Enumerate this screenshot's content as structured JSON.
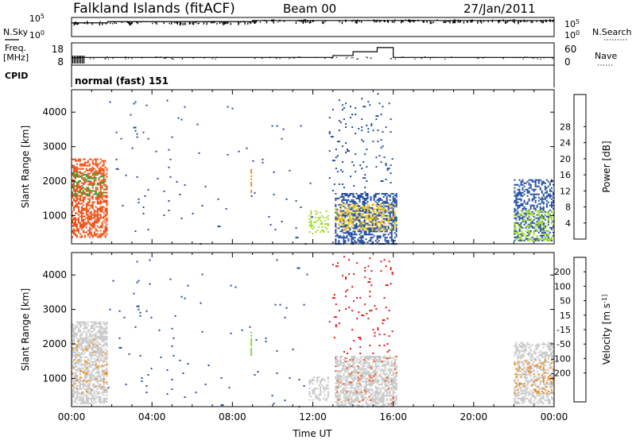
{
  "header": {
    "station": "Falkland Islands (fitACF)",
    "beam": "Beam 00",
    "date": "27/Jan/2011"
  },
  "left_labels": {
    "nsky": "N.Sky",
    "freq_line1": "Freq.",
    "freq_line2": "[MHz]",
    "cpid": "CPID"
  },
  "right_labels": {
    "nsearch": "N.Search",
    "nave": "Nave"
  },
  "cpid_text": "normal (fast) 151",
  "colors": {
    "power": [
      "#1414e6",
      "#1e4aa0",
      "#3c8c78",
      "#2ea02e",
      "#a0dc28",
      "#f0c81e",
      "#f08c14",
      "#f05014",
      "#e61414"
    ],
    "velocity": [
      "#1414e6",
      "#1e4aa0",
      "#3c8c78",
      "#8cd23c",
      "#c8c8c8",
      "#c8c8c8",
      "#f0c81e",
      "#f08c14",
      "#f05014",
      "#e61414"
    ]
  },
  "chart_data": [
    {
      "type": "line",
      "name": "noise-panel",
      "left_ticks": [
        "10^5",
        "10^0"
      ],
      "right_ticks": [
        "10^5",
        "10^0"
      ],
      "series": [
        {
          "name": "N.Sky",
          "x": [
            0.0,
            1.8,
            1.8,
            9.0,
            9.0,
            24.0
          ],
          "y": [
            4.2,
            4.2,
            4.6,
            4.6,
            5.0,
            5.0
          ]
        }
      ]
    },
    {
      "type": "line",
      "name": "freq-panel",
      "left_ticks": [
        "18",
        "8"
      ],
      "right_ticks": [
        "60",
        "0"
      ],
      "series": [
        {
          "name": "Freq",
          "x": [
            0,
            0.4,
            0.4,
            13.0,
            13.0,
            14.0,
            14.0,
            15.2,
            15.2,
            16.0,
            16.0,
            24.0
          ],
          "y": [
            11,
            11,
            11.2,
            11.2,
            12.2,
            12.2,
            14.2,
            14.2,
            16.4,
            16.4,
            11.2,
            11.2
          ]
        }
      ]
    },
    {
      "type": "heatmap",
      "name": "power-panel",
      "xlabel": "",
      "ylabel": "Slant Range [km]",
      "xlim": [
        0,
        24
      ],
      "ylim": [
        180,
        4650
      ],
      "y_ticks": [
        1000,
        2000,
        3000,
        4000
      ],
      "colorbar_label": "Power [dB]",
      "colorbar_ticks": [
        "4",
        "8",
        "12",
        "16",
        "20",
        "24",
        "28"
      ],
      "patches": [
        {
          "x0": 0.0,
          "x1": 1.8,
          "y0": 400,
          "y1": 2700,
          "color": "#f05014",
          "density": 0.55
        },
        {
          "x0": 0.0,
          "x1": 1.8,
          "y0": 1600,
          "y1": 2300,
          "color": "#2ea02e",
          "density": 0.25
        },
        {
          "x0": 8.9,
          "x1": 9.0,
          "y0": 1700,
          "y1": 2400,
          "color": "#f08c14",
          "density": 0.8
        },
        {
          "x0": 11.8,
          "x1": 12.8,
          "y0": 500,
          "y1": 1200,
          "color": "#a0dc28",
          "density": 0.35
        },
        {
          "x0": 13.1,
          "x1": 16.2,
          "y0": 200,
          "y1": 1700,
          "color": "#1e4aa0",
          "density": 0.5
        },
        {
          "x0": 13.1,
          "x1": 16.2,
          "y0": 600,
          "y1": 1400,
          "color": "#f0c81e",
          "density": 0.35
        },
        {
          "x0": 12.8,
          "x1": 16.0,
          "y0": 1700,
          "y1": 4600,
          "color": "#1e4aa0",
          "density": 0.04
        },
        {
          "x0": 22.0,
          "x1": 24.0,
          "y0": 300,
          "y1": 2100,
          "color": "#1e4aa0",
          "density": 0.45
        },
        {
          "x0": 22.0,
          "x1": 24.0,
          "y0": 300,
          "y1": 1200,
          "color": "#a0dc28",
          "density": 0.3
        },
        {
          "x0": 1.8,
          "x1": 12.0,
          "y0": 200,
          "y1": 4500,
          "color": "#1e4aa0",
          "density": 0.008
        }
      ]
    },
    {
      "type": "heatmap",
      "name": "velocity-panel",
      "xlabel": "Time UT",
      "ylabel": "Slant Range [km]",
      "xlim": [
        0,
        24
      ],
      "ylim": [
        180,
        4650
      ],
      "x_ticks": [
        "00:00",
        "04:00",
        "08:00",
        "12:00",
        "16:00",
        "20:00",
        "00:00"
      ],
      "y_ticks": [
        1000,
        2000,
        3000,
        4000
      ],
      "colorbar_label": "Velocity [m s^-1]",
      "colorbar_ticks": [
        "200",
        "100",
        "50",
        "15",
        "-15",
        "-50",
        "-100",
        "-200"
      ],
      "patches": [
        {
          "x0": 0.0,
          "x1": 1.8,
          "y0": 300,
          "y1": 2700,
          "color": "#c8c8c8",
          "density": 0.6
        },
        {
          "x0": 0.0,
          "x1": 1.8,
          "y0": 500,
          "y1": 2200,
          "color": "#f08c14",
          "density": 0.06
        },
        {
          "x0": 8.9,
          "x1": 9.0,
          "y0": 1700,
          "y1": 2400,
          "color": "#8cd23c",
          "density": 0.8
        },
        {
          "x0": 11.8,
          "x1": 12.8,
          "y0": 400,
          "y1": 1100,
          "color": "#c8c8c8",
          "density": 0.4
        },
        {
          "x0": 13.1,
          "x1": 16.2,
          "y0": 200,
          "y1": 1700,
          "color": "#c8c8c8",
          "density": 0.6
        },
        {
          "x0": 13.1,
          "x1": 16.2,
          "y0": 300,
          "y1": 1700,
          "color": "#f05014",
          "density": 0.05
        },
        {
          "x0": 12.8,
          "x1": 16.0,
          "y0": 1700,
          "y1": 4600,
          "color": "#e61414",
          "density": 0.04
        },
        {
          "x0": 22.0,
          "x1": 24.0,
          "y0": 300,
          "y1": 2100,
          "color": "#c8c8c8",
          "density": 0.5
        },
        {
          "x0": 22.0,
          "x1": 24.0,
          "y0": 600,
          "y1": 1600,
          "color": "#f08c14",
          "density": 0.15
        },
        {
          "x0": 1.8,
          "x1": 12.0,
          "y0": 200,
          "y1": 4500,
          "color": "#1e4aa0",
          "density": 0.008
        }
      ]
    }
  ]
}
